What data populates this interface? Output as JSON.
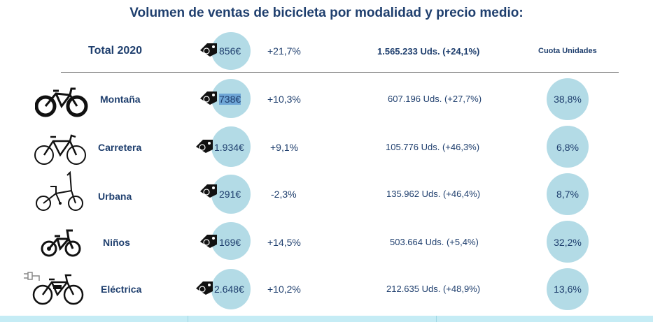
{
  "title": "Volumen de ventas de bicicleta por modalidad y precio medio:",
  "total": {
    "label": "Total 2020",
    "price": "856€",
    "variation": "+21,7%",
    "units": "1.565.233 Uds. (+24,1%)",
    "share_header": "Cuota Unidades"
  },
  "rows": [
    {
      "category": "Montaña",
      "price": "738€",
      "variation": "+10,3%",
      "units": "607.196 Uds. (+27,7%)",
      "share": "38,8%",
      "icon": "mountain-bike-icon"
    },
    {
      "category": "Carretera",
      "price": "1.934€",
      "variation": "+9,1%",
      "units": "105.776 Uds. (+46,3%)",
      "share": "6,8%",
      "icon": "road-bike-icon"
    },
    {
      "category": "Urbana",
      "price": "291€",
      "variation": "-2,3%",
      "units": "135.962 Uds. (+46,4%)",
      "share": "8,7%",
      "icon": "folding-bike-icon"
    },
    {
      "category": "Niños",
      "price": "169€",
      "variation": "+14,5%",
      "units": "503.664 Uds. (+5,4%)",
      "share": "32,2%",
      "icon": "kids-bike-icon"
    },
    {
      "category": "Eléctrica",
      "price": "2.648€",
      "variation": "+10,2%",
      "units": "212.635 Uds. (+48,9%)",
      "share": "13,6%",
      "icon": "electric-bike-icon"
    }
  ],
  "colors": {
    "text": "#1f3f6e",
    "circle": "#b3dbe6",
    "band": "#c5ecf5"
  },
  "icons": {
    "price_tag": "euro-price-tag-icon"
  }
}
